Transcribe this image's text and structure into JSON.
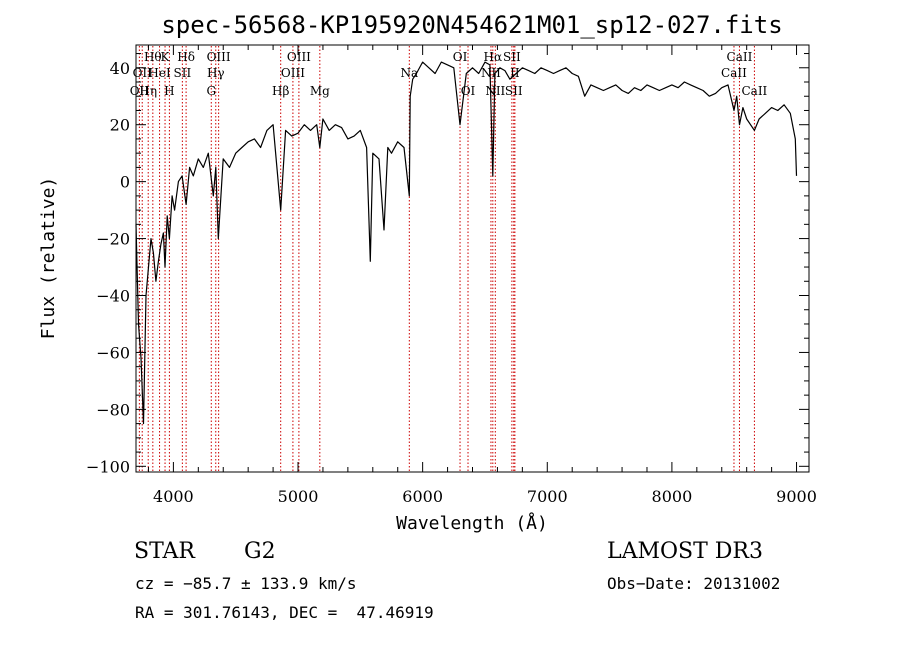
{
  "chart_data": {
    "type": "line",
    "title": "spec-56568-KP195920N454621M01_sp12-027.fits",
    "xlabel": "Wavelength (Å)",
    "ylabel": "Flux (relative)",
    "xlim": [
      3700,
      9100
    ],
    "ylim": [
      -102,
      48
    ],
    "xticks": [
      4000,
      5000,
      6000,
      7000,
      8000,
      9000
    ],
    "xtick_labels": [
      "4000",
      "5000",
      "6000",
      "7000",
      "8000",
      "9000"
    ],
    "yticks": [
      -100,
      -80,
      -60,
      -40,
      -20,
      0,
      20,
      40
    ],
    "ytick_labels": [
      "−100",
      "−80",
      "−60",
      "−40",
      "−20",
      "0",
      "20",
      "40"
    ],
    "grid": false,
    "legend": "none",
    "series": [
      {
        "name": "spectrum",
        "x": [
          3700,
          3720,
          3740,
          3760,
          3780,
          3800,
          3820,
          3840,
          3860,
          3880,
          3900,
          3920,
          3933,
          3950,
          3968,
          3990,
          4010,
          4040,
          4070,
          4102,
          4130,
          4160,
          4200,
          4240,
          4280,
          4320,
          4340,
          4360,
          4400,
          4450,
          4500,
          4550,
          4600,
          4650,
          4700,
          4750,
          4800,
          4861,
          4900,
          4950,
          5000,
          5050,
          5100,
          5150,
          5175,
          5200,
          5250,
          5300,
          5350,
          5400,
          5450,
          5500,
          5550,
          5580,
          5600,
          5650,
          5690,
          5720,
          5750,
          5800,
          5850,
          5893,
          5900,
          5920,
          5950,
          6000,
          6050,
          6100,
          6150,
          6200,
          6250,
          6300,
          6350,
          6400,
          6450,
          6500,
          6540,
          6563,
          6580,
          6620,
          6660,
          6700,
          6750,
          6800,
          6850,
          6900,
          6950,
          7000,
          7050,
          7100,
          7150,
          7200,
          7250,
          7300,
          7350,
          7400,
          7450,
          7500,
          7550,
          7600,
          7650,
          7700,
          7750,
          7800,
          7850,
          7900,
          7950,
          8000,
          8050,
          8100,
          8150,
          8200,
          8250,
          8300,
          8350,
          8400,
          8450,
          8498,
          8520,
          8542,
          8570,
          8600,
          8662,
          8700,
          8750,
          8800,
          8850,
          8900,
          8950,
          8990,
          9000
        ],
        "y": [
          -15,
          -50,
          -62,
          -85,
          -40,
          -30,
          -20,
          -25,
          -35,
          -28,
          -22,
          -18,
          -30,
          -12,
          -20,
          -5,
          -10,
          0,
          2,
          -8,
          5,
          2,
          8,
          5,
          10,
          -5,
          5,
          -20,
          8,
          5,
          10,
          12,
          14,
          15,
          12,
          18,
          20,
          -10,
          18,
          16,
          17,
          20,
          18,
          20,
          12,
          22,
          18,
          20,
          19,
          15,
          16,
          18,
          12,
          -28,
          10,
          8,
          -17,
          12,
          10,
          14,
          12,
          -5,
          30,
          36,
          38,
          42,
          40,
          38,
          42,
          41,
          40,
          20,
          38,
          40,
          38,
          42,
          41,
          2,
          38,
          40,
          39,
          36,
          38,
          40,
          39,
          38,
          40,
          39,
          38,
          39,
          40,
          38,
          37,
          30,
          34,
          33,
          32,
          33,
          34,
          32,
          31,
          33,
          32,
          34,
          33,
          32,
          33,
          34,
          33,
          35,
          34,
          33,
          32,
          30,
          31,
          33,
          34,
          25,
          30,
          20,
          26,
          22,
          18,
          22,
          24,
          26,
          25,
          27,
          24,
          15,
          2
        ]
      }
    ],
    "lines": [
      {
        "wavelength": 3727,
        "label": "OII",
        "row": 3
      },
      {
        "wavelength": 3750,
        "label": "OII",
        "row": 2
      },
      {
        "wavelength": 3798,
        "label": "Hη",
        "row": 3
      },
      {
        "wavelength": 3835,
        "label": "Hθ",
        "row": 1
      },
      {
        "wavelength": 3889,
        "label": "HeI",
        "row": 2
      },
      {
        "wavelength": 3933,
        "label": "K",
        "row": 1
      },
      {
        "wavelength": 3968,
        "label": "H",
        "row": 3
      },
      {
        "wavelength": 4072,
        "label": "SII",
        "row": 2
      },
      {
        "wavelength": 4102,
        "label": "Hδ",
        "row": 1
      },
      {
        "wavelength": 4304,
        "label": "G",
        "row": 3
      },
      {
        "wavelength": 4340,
        "label": "Hγ",
        "row": 2
      },
      {
        "wavelength": 4363,
        "label": "OIII",
        "row": 1
      },
      {
        "wavelength": 4861,
        "label": "Hβ",
        "row": 3
      },
      {
        "wavelength": 4959,
        "label": "OIII",
        "row": 2
      },
      {
        "wavelength": 5007,
        "label": "OIII",
        "row": 1
      },
      {
        "wavelength": 5175,
        "label": "Mg",
        "row": 3
      },
      {
        "wavelength": 5893,
        "label": "Na",
        "row": 2
      },
      {
        "wavelength": 6300,
        "label": "OI",
        "row": 1
      },
      {
        "wavelength": 6364,
        "label": "OI",
        "row": 3
      },
      {
        "wavelength": 6548,
        "label": "NII",
        "row": 2
      },
      {
        "wavelength": 6563,
        "label": "Hα",
        "row": 1
      },
      {
        "wavelength": 6583,
        "label": "NII",
        "row": 3
      },
      {
        "wavelength": 6716,
        "label": "SII",
        "row": 1
      },
      {
        "wavelength": 6731,
        "label": "SII",
        "row": 3
      },
      {
        "wavelength": 6740,
        "label": "II",
        "row": 2
      },
      {
        "wavelength": 8498,
        "label": "CaII",
        "row": 2
      },
      {
        "wavelength": 8542,
        "label": "CaII",
        "row": 1
      },
      {
        "wavelength": 8662,
        "label": "CaII",
        "row": 3
      }
    ],
    "line_color": "#cc0000"
  },
  "info": {
    "object_type": "STAR",
    "subclass": "G2",
    "survey": "LAMOST DR3",
    "cz": "cz = −85.7 ± 133.9 km/s",
    "obs_date": "Obs−Date: 20131002",
    "coords": "RA = 301.76143, DEC =  47.46919"
  }
}
